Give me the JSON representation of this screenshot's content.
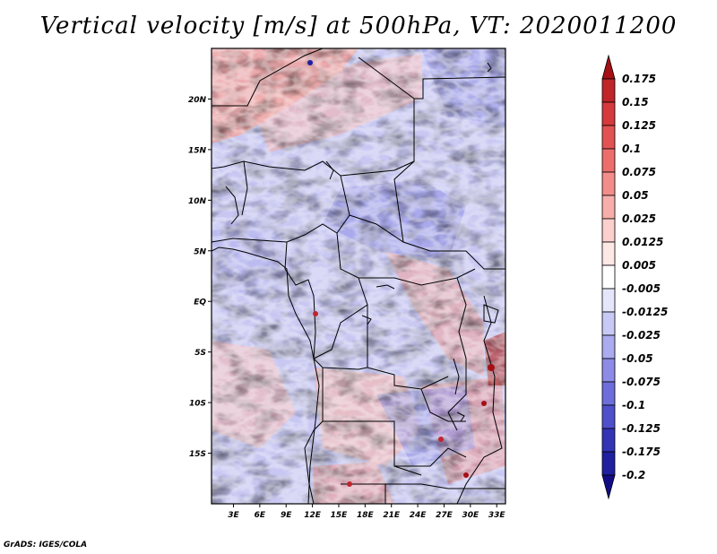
{
  "title": "Vertical velocity [m/s] at 500hPa, VT: 2020011200",
  "credit": "GrADS: IGES/COLA",
  "map": {
    "lat_labels": [
      "20N",
      "15N",
      "10N",
      "5N",
      "EQ",
      "5S",
      "10S",
      "15S"
    ],
    "lat_values": [
      20,
      15,
      10,
      5,
      0,
      -5,
      -10,
      -15
    ],
    "lon_labels": [
      "3E",
      "6E",
      "9E",
      "12E",
      "15E",
      "18E",
      "21E",
      "24E",
      "27E",
      "30E",
      "33E"
    ],
    "lon_values": [
      3,
      6,
      9,
      12,
      15,
      18,
      21,
      24,
      27,
      30,
      33
    ],
    "lat_range": [
      -20,
      25
    ],
    "lon_range": [
      0.5,
      34
    ]
  },
  "colorbar": {
    "labels": [
      "0.175",
      "0.15",
      "0.125",
      "0.1",
      "0.075",
      "0.05",
      "0.025",
      "0.0125",
      "0.005",
      "-0.005",
      "-0.0125",
      "-0.025",
      "-0.05",
      "-0.075",
      "-0.1",
      "-0.125",
      "-0.175",
      "-0.2"
    ],
    "colors": [
      "#a50f15",
      "#c0252a",
      "#d63a3c",
      "#e35252",
      "#ec6d6b",
      "#f28d89",
      "#f7aeaa",
      "#fbcfcc",
      "#fde8e6",
      "#ffffff",
      "#e6e6fb",
      "#c9c9f6",
      "#ababef",
      "#8c8ce6",
      "#6d6ddb",
      "#4f4fcc",
      "#3333b8",
      "#1f1fa0",
      "#120c85"
    ]
  }
}
